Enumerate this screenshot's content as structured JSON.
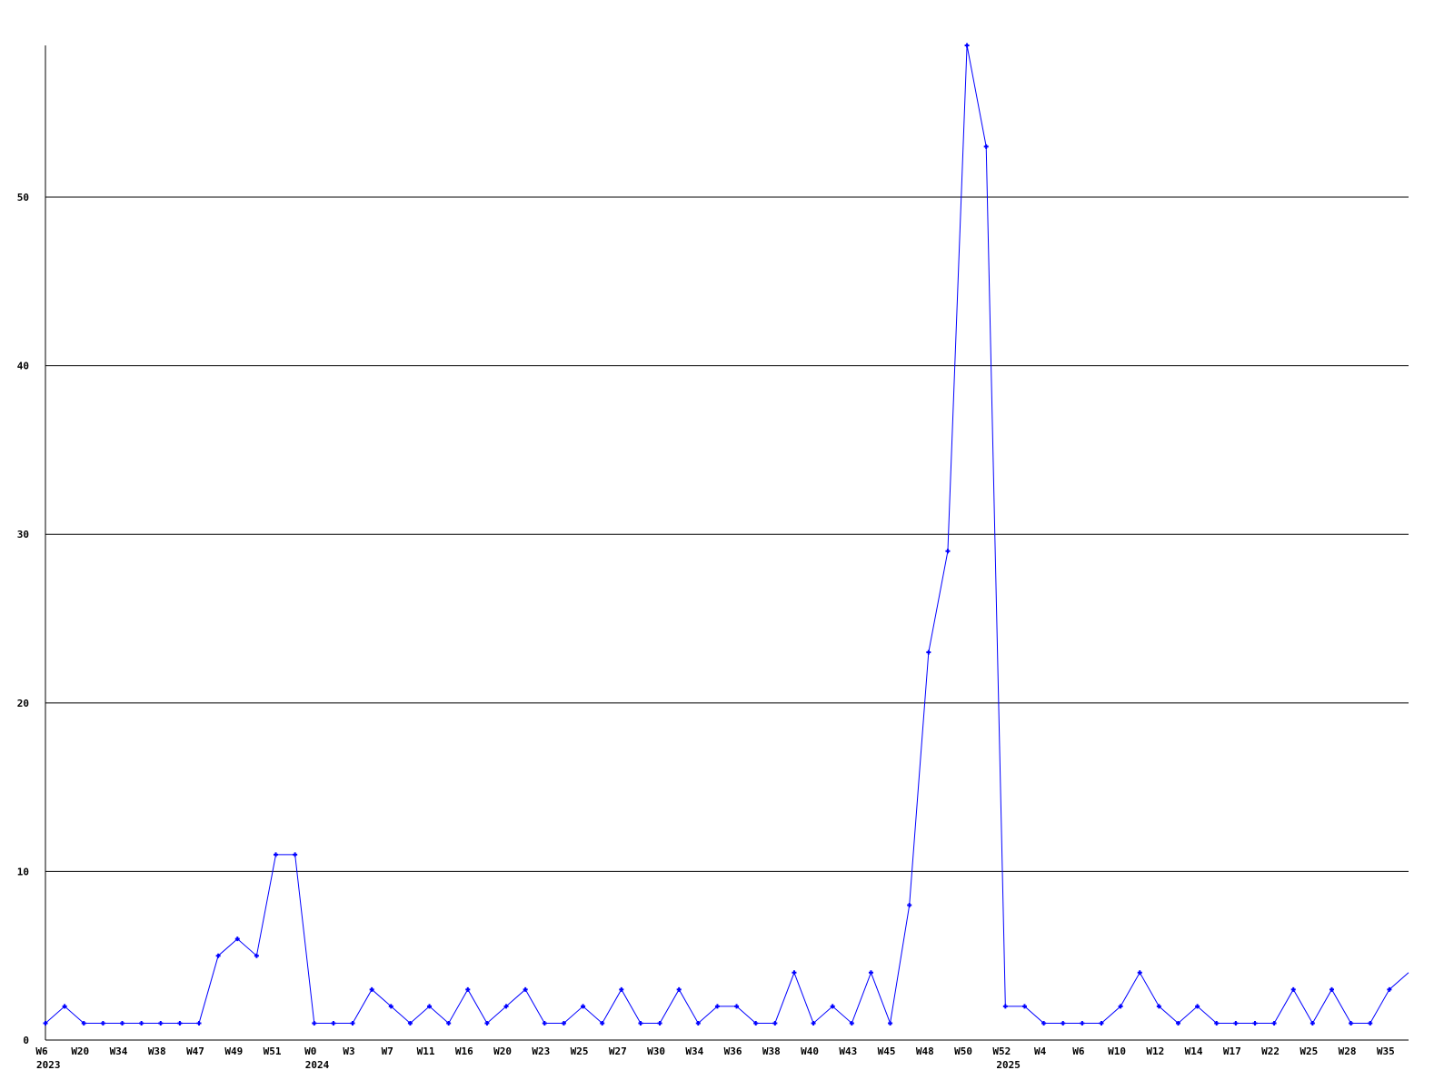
{
  "chart_data": {
    "type": "line",
    "title": "",
    "xlabel": "",
    "ylabel": "",
    "ylim": [
      0,
      59
    ],
    "yticks": [
      0,
      10,
      20,
      30,
      40,
      50
    ],
    "grid": "horizontal",
    "line_color": "#0000ff",
    "axis_color": "#000000",
    "x_labels": [
      "W6",
      "",
      "W20",
      "",
      "W34",
      "",
      "W38",
      "",
      "W47",
      "",
      "W49",
      "",
      "W51",
      "",
      "W0",
      "",
      "W3",
      "",
      "W7",
      "",
      "W11",
      "",
      "W16",
      "",
      "W20",
      "",
      "W23",
      "",
      "W25",
      "",
      "W27",
      "",
      "W30",
      "",
      "W34",
      "",
      "W36",
      "",
      "W38",
      "",
      "W40",
      "",
      "W43",
      "",
      "W45",
      "",
      "W48",
      "",
      "W50",
      "",
      "W52",
      "",
      "W4",
      "",
      "W6",
      "",
      "W10",
      "",
      "W12",
      "",
      "W14",
      "",
      "W17",
      "",
      "W22",
      "",
      "W25",
      "",
      "W28",
      "",
      "W35",
      ""
    ],
    "year_labels": [
      {
        "index": 0,
        "label": "2023"
      },
      {
        "index": 14,
        "label": "2024"
      },
      {
        "index": 50,
        "label": "2025"
      }
    ],
    "values": [
      1,
      2,
      1,
      1,
      1,
      1,
      1,
      1,
      1,
      5,
      6,
      5,
      11,
      11,
      1,
      1,
      1,
      3,
      2,
      1,
      2,
      1,
      3,
      1,
      2,
      3,
      1,
      1,
      2,
      1,
      3,
      1,
      1,
      3,
      1,
      2,
      2,
      1,
      1,
      4,
      1,
      2,
      1,
      4,
      1,
      8,
      23,
      29,
      59,
      53,
      2,
      2,
      1,
      1,
      1,
      1,
      2,
      4,
      2,
      1,
      2,
      1,
      1,
      1,
      1,
      3,
      1,
      3,
      1,
      1,
      3,
      4
    ]
  }
}
